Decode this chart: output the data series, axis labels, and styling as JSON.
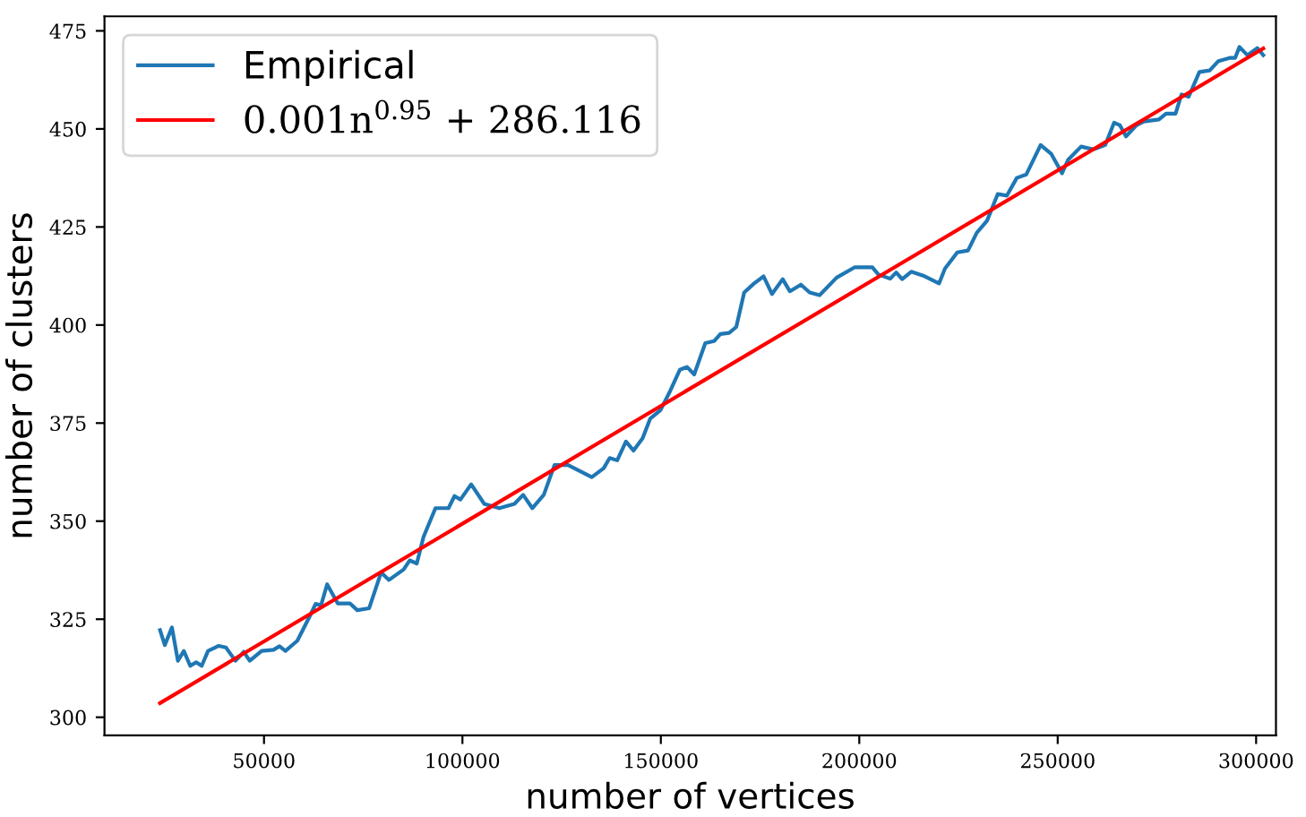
{
  "chart_data": {
    "type": "line",
    "xlabel": "number of vertices",
    "ylabel": "number of clusters",
    "xlim": [
      9800,
      305000
    ],
    "ylim": [
      295.4,
      478.7
    ],
    "xticks": [
      50000,
      100000,
      150000,
      200000,
      250000,
      300000
    ],
    "yticks": [
      300,
      325,
      350,
      375,
      400,
      425,
      450,
      475
    ],
    "grid": false,
    "legend": "top left",
    "marker": "none",
    "line_style": "solid",
    "series": [
      {
        "name": "Empirical",
        "color": "#1f77b4",
        "x": [
          23800,
          25000,
          26800,
          28300,
          29800,
          31400,
          32900,
          34300,
          35900,
          38600,
          40400,
          42800,
          44900,
          46400,
          49400,
          52400,
          53900,
          55400,
          58400,
          61400,
          63000,
          64400,
          65900,
          68600,
          71700,
          73500,
          76500,
          79500,
          81500,
          85200,
          86700,
          88500,
          90200,
          93200,
          96500,
          98000,
          99500,
          102200,
          105500,
          109300,
          113100,
          115300,
          117600,
          120500,
          123200,
          126600,
          132600,
          135600,
          137100,
          139000,
          141200,
          143100,
          145400,
          147300,
          149900,
          152400,
          154800,
          156600,
          158400,
          161200,
          163400,
          165000,
          167200,
          169000,
          171000,
          173500,
          175900,
          178000,
          180700,
          182500,
          185300,
          187500,
          190000,
          194300,
          198800,
          203300,
          204800,
          207800,
          209300,
          210800,
          213100,
          216100,
          220100,
          221600,
          224700,
          227400,
          229600,
          232200,
          234900,
          237200,
          239700,
          242100,
          245700,
          248400,
          251100,
          252600,
          255900,
          259000,
          262000,
          264200,
          265700,
          267200,
          269800,
          271700,
          275500,
          277300,
          279700,
          281200,
          283000,
          285700,
          288300,
          290500,
          293300,
          294700,
          295800,
          297800,
          300300,
          301800
        ],
        "values": [
          322.2,
          318.4,
          322.9,
          314.4,
          316.9,
          313.1,
          314.0,
          313.1,
          316.9,
          318.2,
          317.8,
          314.4,
          316.7,
          314.4,
          316.9,
          317.2,
          318.1,
          316.9,
          319.5,
          325.5,
          328.9,
          328.6,
          333.9,
          329.0,
          329.0,
          327.3,
          327.8,
          336.9,
          335.0,
          337.7,
          340.0,
          339.2,
          346.0,
          353.3,
          353.3,
          356.4,
          355.5,
          359.4,
          354.4,
          353.3,
          354.4,
          356.7,
          353.3,
          356.7,
          364.3,
          364.3,
          361.2,
          363.5,
          366.1,
          365.5,
          370.3,
          368.0,
          371.1,
          376.1,
          378.3,
          383.3,
          388.6,
          389.3,
          387.4,
          395.4,
          395.9,
          397.7,
          398.0,
          399.5,
          408.3,
          410.6,
          412.4,
          407.9,
          411.7,
          408.6,
          410.3,
          408.3,
          407.6,
          412.1,
          414.7,
          414.7,
          412.9,
          411.8,
          413.4,
          411.7,
          413.6,
          412.6,
          410.6,
          414.4,
          418.5,
          419.0,
          423.5,
          426.6,
          433.4,
          433.0,
          437.5,
          438.4,
          445.9,
          443.6,
          438.7,
          442.1,
          445.5,
          444.8,
          445.9,
          451.6,
          450.9,
          448.1,
          450.9,
          451.9,
          452.4,
          453.9,
          453.9,
          458.8,
          458.2,
          464.5,
          464.9,
          467.3,
          468.1,
          468.1,
          470.9,
          468.8,
          470.6,
          468.8
        ]
      },
      {
        "name": "0.001n$^{0.95}$ + 286.116",
        "color": "#ff0000",
        "x": [
          23800,
          301800
        ],
        "values": [
          303.6,
          470.5
        ]
      }
    ]
  }
}
